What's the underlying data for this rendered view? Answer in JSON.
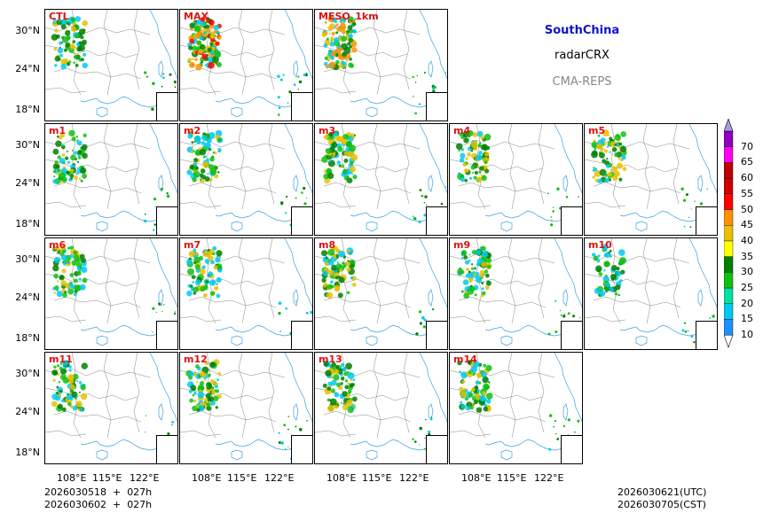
{
  "panels": [
    {
      "label": "CTL",
      "row": 0,
      "col": 0,
      "intensity": 2
    },
    {
      "label": "MAX",
      "row": 0,
      "col": 1,
      "intensity": 4
    },
    {
      "label": "MESO_1km",
      "row": 0,
      "col": 2,
      "intensity": 3
    },
    {
      "label": "m1",
      "row": 1,
      "col": 0,
      "intensity": 2
    },
    {
      "label": "m2",
      "row": 1,
      "col": 1,
      "intensity": 2
    },
    {
      "label": "m3",
      "row": 1,
      "col": 2,
      "intensity": 2
    },
    {
      "label": "m4",
      "row": 1,
      "col": 3,
      "intensity": 2
    },
    {
      "label": "m5",
      "row": 1,
      "col": 4,
      "intensity": 2
    },
    {
      "label": "m6",
      "row": 2,
      "col": 0,
      "intensity": 2
    },
    {
      "label": "m7",
      "row": 2,
      "col": 1,
      "intensity": 2
    },
    {
      "label": "m8",
      "row": 2,
      "col": 2,
      "intensity": 2
    },
    {
      "label": "m9",
      "row": 2,
      "col": 3,
      "intensity": 2
    },
    {
      "label": "m10",
      "row": 2,
      "col": 4,
      "intensity": 1
    },
    {
      "label": "m11",
      "row": 3,
      "col": 0,
      "intensity": 2
    },
    {
      "label": "m12",
      "row": 3,
      "col": 1,
      "intensity": 2
    },
    {
      "label": "m13",
      "row": 3,
      "col": 2,
      "intensity": 2
    },
    {
      "label": "m14",
      "row": 3,
      "col": 3,
      "intensity": 2
    }
  ],
  "lat_ticks": [
    "30°N",
    "24°N",
    "18°N"
  ],
  "lon_ticks": [
    "108°E",
    "115°E",
    "122°E"
  ],
  "info": {
    "region": "SouthChina",
    "product": "radarCRX",
    "system": "CMA-REPS",
    "region_color": "#1010cc",
    "system_color": "#888888"
  },
  "colorbar": {
    "levels": [
      "10",
      "15",
      "20",
      "25",
      "30",
      "35",
      "40",
      "45",
      "50",
      "55",
      "60",
      "65",
      "70"
    ],
    "colors": [
      "#1e90ff",
      "#00c8f0",
      "#00e0a0",
      "#10c010",
      "#008000",
      "#ffff00",
      "#e8c000",
      "#ff9000",
      "#ff0000",
      "#d00000",
      "#c00000",
      "#ff00f0",
      "#9000c0",
      "#a898e0"
    ]
  },
  "footer": {
    "init_line1": "2026030518  +  027h",
    "init_line2": "2026030602  +  027h",
    "valid_utc": "2026030621(UTC)",
    "valid_cst": "2026030705(CST)"
  }
}
